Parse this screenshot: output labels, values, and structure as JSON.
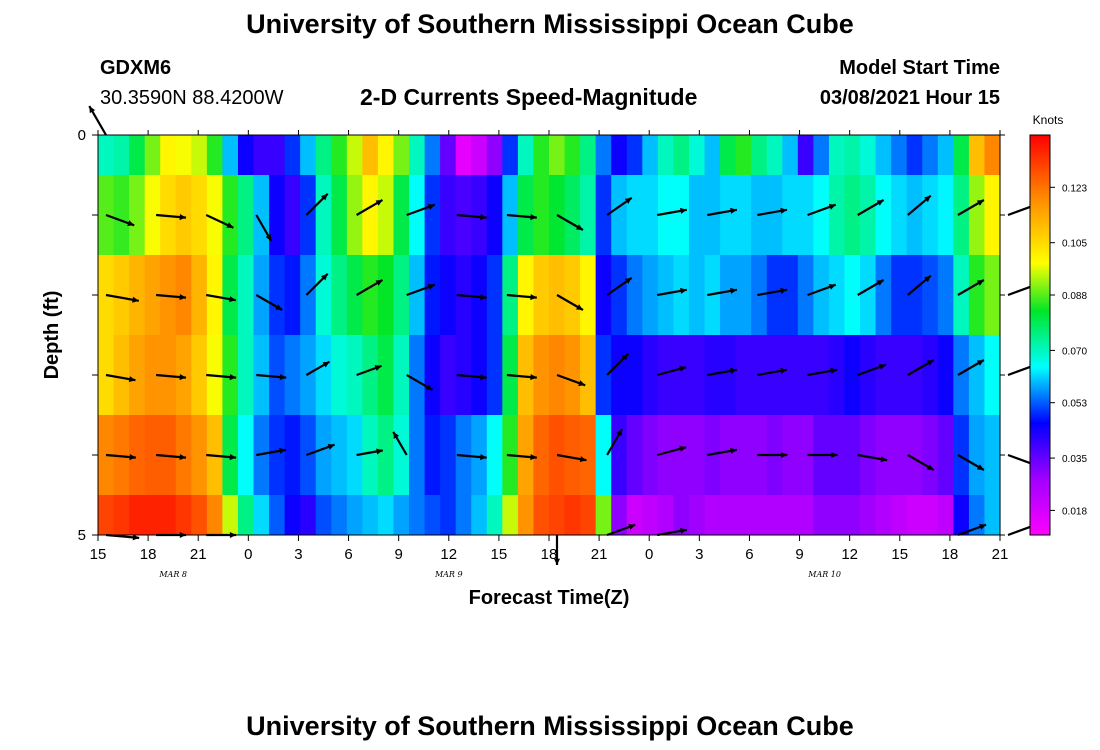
{
  "header": {
    "title": "University of Southern Mississippi Ocean Cube",
    "station_id": "GDXM6",
    "station_coords": "30.3590N 88.4200W",
    "subtitle": "2-D Currents Speed-Magnitude",
    "model_start_label": "Model Start Time",
    "model_start_value": "03/08/2021 Hour 15"
  },
  "footer": {
    "title": "University of Southern Mississippi Ocean Cube"
  },
  "chart_data": {
    "type": "heatmap",
    "title": "2-D Currents Speed-Magnitude",
    "xlabel": "Forecast Time(Z)",
    "ylabel": "Depth (ft)",
    "x_tick_labels": [
      "15",
      "18",
      "21",
      "0",
      "3",
      "6",
      "9",
      "12",
      "15",
      "18",
      "21",
      "0",
      "3",
      "6",
      "9",
      "12",
      "15",
      "18",
      "21"
    ],
    "x_date_labels": [
      {
        "label": "MAR 8",
        "tick_index": 1.5
      },
      {
        "label": "MAR 9",
        "tick_index": 7
      },
      {
        "label": "MAR 10",
        "tick_index": 14.5
      }
    ],
    "y_tick_labels": [
      "0",
      "",
      "",
      "",
      "",
      "5"
    ],
    "ylim": [
      0,
      5
    ],
    "depth_levels": [
      0,
      1,
      2,
      3,
      4,
      5
    ],
    "colorbar": {
      "label": "Knots",
      "range": [
        0.01,
        0.14
      ],
      "ticks": [
        "0.123",
        "0.105",
        "0.088",
        "0.070",
        "0.053",
        "0.035",
        "0.018"
      ],
      "tick_values": [
        0.123,
        0.105,
        0.088,
        0.07,
        0.053,
        0.035,
        0.018
      ]
    },
    "speed_columns": [
      [
        0.07,
        0.088,
        0.105,
        0.105,
        0.12,
        0.13
      ],
      [
        0.072,
        0.086,
        0.108,
        0.11,
        0.122,
        0.132
      ],
      [
        0.08,
        0.09,
        0.112,
        0.115,
        0.125,
        0.135
      ],
      [
        0.09,
        0.098,
        0.115,
        0.118,
        0.126,
        0.135
      ],
      [
        0.1,
        0.105,
        0.118,
        0.118,
        0.126,
        0.135
      ],
      [
        0.098,
        0.108,
        0.12,
        0.115,
        0.122,
        0.132
      ],
      [
        0.095,
        0.105,
        0.112,
        0.108,
        0.118,
        0.128
      ],
      [
        0.085,
        0.098,
        0.1,
        0.098,
        0.11,
        0.12
      ],
      [
        0.06,
        0.085,
        0.08,
        0.085,
        0.08,
        0.095
      ],
      [
        0.045,
        0.075,
        0.07,
        0.07,
        0.065,
        0.075
      ],
      [
        0.04,
        0.06,
        0.058,
        0.06,
        0.055,
        0.062
      ],
      [
        0.04,
        0.045,
        0.05,
        0.052,
        0.05,
        0.053
      ],
      [
        0.05,
        0.04,
        0.048,
        0.055,
        0.048,
        0.045
      ],
      [
        0.06,
        0.05,
        0.055,
        0.058,
        0.052,
        0.042
      ],
      [
        0.075,
        0.07,
        0.068,
        0.062,
        0.058,
        0.052
      ],
      [
        0.085,
        0.08,
        0.075,
        0.068,
        0.06,
        0.055
      ],
      [
        0.095,
        0.092,
        0.08,
        0.07,
        0.062,
        0.058
      ],
      [
        0.11,
        0.1,
        0.085,
        0.075,
        0.07,
        0.06
      ],
      [
        0.1,
        0.095,
        0.083,
        0.08,
        0.075,
        0.062
      ],
      [
        0.09,
        0.08,
        0.075,
        0.07,
        0.068,
        0.058
      ],
      [
        0.07,
        0.065,
        0.06,
        0.055,
        0.055,
        0.055
      ],
      [
        0.055,
        0.05,
        0.048,
        0.045,
        0.048,
        0.052
      ],
      [
        0.035,
        0.04,
        0.045,
        0.04,
        0.05,
        0.05
      ],
      [
        0.015,
        0.038,
        0.042,
        0.042,
        0.055,
        0.055
      ],
      [
        0.02,
        0.04,
        0.045,
        0.045,
        0.058,
        0.06
      ],
      [
        0.03,
        0.045,
        0.05,
        0.05,
        0.065,
        0.07
      ],
      [
        0.05,
        0.06,
        0.075,
        0.08,
        0.085,
        0.095
      ],
      [
        0.07,
        0.08,
        0.1,
        0.11,
        0.115,
        0.118
      ],
      [
        0.085,
        0.085,
        0.108,
        0.118,
        0.125,
        0.128
      ],
      [
        0.09,
        0.082,
        0.11,
        0.12,
        0.128,
        0.13
      ],
      [
        0.085,
        0.078,
        0.108,
        0.118,
        0.126,
        0.132
      ],
      [
        0.075,
        0.072,
        0.1,
        0.11,
        0.125,
        0.13
      ],
      [
        0.055,
        0.05,
        0.045,
        0.05,
        0.065,
        0.09
      ],
      [
        0.045,
        0.06,
        0.05,
        0.045,
        0.04,
        0.03
      ],
      [
        0.05,
        0.062,
        0.055,
        0.045,
        0.035,
        0.02
      ],
      [
        0.06,
        0.062,
        0.058,
        0.042,
        0.032,
        0.022
      ],
      [
        0.07,
        0.065,
        0.06,
        0.04,
        0.03,
        0.025
      ],
      [
        0.075,
        0.065,
        0.062,
        0.04,
        0.03,
        0.03
      ],
      [
        0.068,
        0.06,
        0.06,
        0.04,
        0.03,
        0.028
      ],
      [
        0.06,
        0.06,
        0.062,
        0.042,
        0.032,
        0.025
      ],
      [
        0.08,
        0.062,
        0.058,
        0.042,
        0.03,
        0.025
      ],
      [
        0.085,
        0.062,
        0.058,
        0.04,
        0.03,
        0.025
      ],
      [
        0.075,
        0.06,
        0.055,
        0.04,
        0.03,
        0.025
      ],
      [
        0.07,
        0.06,
        0.05,
        0.04,
        0.032,
        0.025
      ],
      [
        0.06,
        0.062,
        0.05,
        0.04,
        0.03,
        0.025
      ],
      [
        0.04,
        0.062,
        0.055,
        0.04,
        0.03,
        0.025
      ],
      [
        0.055,
        0.065,
        0.06,
        0.04,
        0.035,
        0.03
      ],
      [
        0.07,
        0.072,
        0.062,
        0.042,
        0.035,
        0.03
      ],
      [
        0.072,
        0.075,
        0.065,
        0.045,
        0.035,
        0.03
      ],
      [
        0.068,
        0.072,
        0.062,
        0.042,
        0.032,
        0.028
      ],
      [
        0.06,
        0.065,
        0.055,
        0.04,
        0.03,
        0.025
      ],
      [
        0.055,
        0.062,
        0.05,
        0.04,
        0.03,
        0.022
      ],
      [
        0.05,
        0.06,
        0.05,
        0.04,
        0.03,
        0.02
      ],
      [
        0.055,
        0.062,
        0.052,
        0.042,
        0.032,
        0.02
      ],
      [
        0.06,
        0.064,
        0.055,
        0.045,
        0.035,
        0.022
      ],
      [
        0.08,
        0.075,
        0.07,
        0.055,
        0.05,
        0.045
      ],
      [
        0.11,
        0.092,
        0.085,
        0.06,
        0.058,
        0.055
      ],
      [
        0.12,
        0.1,
        0.09,
        0.065,
        0.06,
        0.06
      ]
    ],
    "vectors": [
      [
        [
          120,
          0.1
        ],
        [
          -20,
          0.09
        ],
        [
          -10,
          0.1
        ],
        [
          -10,
          0.09
        ],
        [
          -5,
          0.09
        ],
        [
          -5,
          0.1
        ]
      ],
      [
        null,
        [
          -5,
          0.09
        ],
        [
          -5,
          0.09
        ],
        [
          -5,
          0.09
        ],
        [
          -5,
          0.09
        ],
        [
          0,
          0.09
        ]
      ],
      [
        null,
        [
          -25,
          0.09
        ],
        [
          -10,
          0.09
        ],
        [
          -5,
          0.09
        ],
        [
          -5,
          0.09
        ],
        [
          0,
          0.09
        ]
      ],
      [
        null,
        [
          -60,
          0.09
        ],
        [
          -30,
          0.09
        ],
        [
          -5,
          0.09
        ],
        [
          10,
          0.09
        ],
        null
      ],
      [
        null,
        [
          45,
          0.09
        ],
        [
          45,
          0.09
        ],
        [
          30,
          0.08
        ],
        [
          20,
          0.09
        ],
        null
      ],
      [
        null,
        [
          30,
          0.09
        ],
        [
          30,
          0.09
        ],
        [
          20,
          0.08
        ],
        [
          10,
          0.08
        ],
        null
      ],
      [
        null,
        [
          20,
          0.09
        ],
        [
          20,
          0.09
        ],
        [
          -30,
          0.09
        ],
        [
          120,
          0.08
        ],
        null
      ],
      [
        null,
        [
          -5,
          0.09
        ],
        [
          -5,
          0.09
        ],
        [
          -5,
          0.09
        ],
        [
          -5,
          0.09
        ],
        null
      ],
      [
        null,
        [
          -5,
          0.09
        ],
        [
          -5,
          0.09
        ],
        [
          -5,
          0.09
        ],
        [
          -5,
          0.09
        ],
        null
      ],
      [
        null,
        [
          -30,
          0.09
        ],
        [
          -30,
          0.09
        ],
        [
          -20,
          0.09
        ],
        [
          -10,
          0.09
        ],
        [
          -90,
          0.09
        ]
      ],
      [
        null,
        [
          35,
          0.09
        ],
        [
          35,
          0.09
        ],
        [
          45,
          0.09
        ],
        [
          60,
          0.09
        ],
        [
          20,
          0.09
        ]
      ],
      [
        null,
        [
          10,
          0.09
        ],
        [
          10,
          0.09
        ],
        [
          15,
          0.09
        ],
        [
          15,
          0.09
        ],
        [
          10,
          0.09
        ]
      ],
      [
        null,
        [
          10,
          0.09
        ],
        [
          10,
          0.09
        ],
        [
          10,
          0.09
        ],
        [
          10,
          0.09
        ],
        null
      ],
      [
        null,
        [
          10,
          0.09
        ],
        [
          10,
          0.09
        ],
        [
          10,
          0.09
        ],
        [
          0,
          0.09
        ],
        null
      ],
      [
        null,
        [
          20,
          0.09
        ],
        [
          20,
          0.09
        ],
        [
          10,
          0.09
        ],
        [
          0,
          0.09
        ],
        null
      ],
      [
        null,
        [
          30,
          0.09
        ],
        [
          30,
          0.09
        ],
        [
          20,
          0.09
        ],
        [
          -10,
          0.09
        ],
        null
      ],
      [
        null,
        [
          40,
          0.09
        ],
        [
          40,
          0.09
        ],
        [
          30,
          0.09
        ],
        [
          -30,
          0.09
        ],
        null
      ],
      [
        null,
        [
          30,
          0.09
        ],
        [
          30,
          0.09
        ],
        [
          30,
          0.09
        ],
        [
          -30,
          0.09
        ],
        [
          20,
          0.09
        ]
      ],
      [
        null,
        [
          20,
          0.09
        ],
        [
          20,
          0.09
        ],
        [
          20,
          0.09
        ],
        [
          -20,
          0.09
        ],
        [
          20,
          0.09
        ]
      ]
    ]
  }
}
